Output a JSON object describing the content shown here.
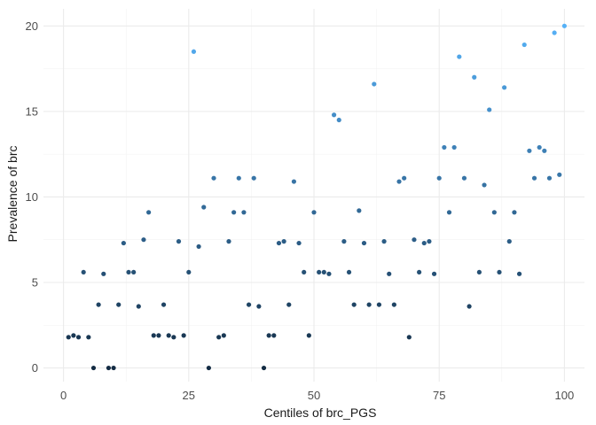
{
  "chart_data": {
    "type": "scatter",
    "title": "",
    "xlabel": "Centiles of brc_PGS",
    "ylabel": "Prevalence of brc",
    "xlim": [
      -4,
      104
    ],
    "ylim": [
      -0.8,
      21
    ],
    "xticks": [
      0,
      25,
      50,
      75,
      100
    ],
    "yticks": [
      0,
      5,
      10,
      15,
      20
    ],
    "grid": true,
    "legend": "none",
    "colors": {
      "low": "#132b43",
      "high": "#56b1f7"
    },
    "points": [
      [
        1,
        1.8
      ],
      [
        2,
        1.9
      ],
      [
        3,
        1.8
      ],
      [
        4,
        5.6
      ],
      [
        5,
        1.8
      ],
      [
        6,
        0.0
      ],
      [
        7,
        3.7
      ],
      [
        8,
        5.5
      ],
      [
        9,
        0.0
      ],
      [
        10,
        0.0
      ],
      [
        11,
        3.7
      ],
      [
        12,
        7.3
      ],
      [
        13,
        5.6
      ],
      [
        14,
        5.6
      ],
      [
        15,
        3.6
      ],
      [
        16,
        7.5
      ],
      [
        17,
        9.1
      ],
      [
        18,
        1.9
      ],
      [
        19,
        1.9
      ],
      [
        20,
        3.7
      ],
      [
        21,
        1.9
      ],
      [
        22,
        1.8
      ],
      [
        23,
        7.4
      ],
      [
        24,
        1.9
      ],
      [
        25,
        5.6
      ],
      [
        26,
        18.5
      ],
      [
        27,
        7.1
      ],
      [
        28,
        9.4
      ],
      [
        29,
        0.0
      ],
      [
        30,
        11.1
      ],
      [
        31,
        1.8
      ],
      [
        32,
        1.9
      ],
      [
        33,
        7.4
      ],
      [
        34,
        9.1
      ],
      [
        35,
        11.1
      ],
      [
        36,
        9.1
      ],
      [
        37,
        3.7
      ],
      [
        38,
        11.1
      ],
      [
        39,
        3.6
      ],
      [
        40,
        0.0
      ],
      [
        41,
        1.9
      ],
      [
        42,
        1.9
      ],
      [
        43,
        7.3
      ],
      [
        44,
        7.4
      ],
      [
        45,
        3.7
      ],
      [
        46,
        10.9
      ],
      [
        47,
        7.3
      ],
      [
        48,
        5.6
      ],
      [
        49,
        1.9
      ],
      [
        50,
        9.1
      ],
      [
        51,
        5.6
      ],
      [
        52,
        5.6
      ],
      [
        53,
        5.5
      ],
      [
        54,
        14.8
      ],
      [
        55,
        14.5
      ],
      [
        56,
        7.4
      ],
      [
        57,
        5.6
      ],
      [
        58,
        3.7
      ],
      [
        59,
        9.2
      ],
      [
        60,
        7.3
      ],
      [
        61,
        3.7
      ],
      [
        62,
        16.6
      ],
      [
        63,
        3.7
      ],
      [
        64,
        7.4
      ],
      [
        65,
        5.5
      ],
      [
        66,
        3.7
      ],
      [
        67,
        10.9
      ],
      [
        68,
        11.1
      ],
      [
        69,
        1.8
      ],
      [
        70,
        7.5
      ],
      [
        71,
        5.6
      ],
      [
        72,
        7.3
      ],
      [
        73,
        7.4
      ],
      [
        74,
        5.5
      ],
      [
        75,
        11.1
      ],
      [
        76,
        12.9
      ],
      [
        77,
        9.1
      ],
      [
        78,
        12.9
      ],
      [
        79,
        18.2
      ],
      [
        80,
        11.1
      ],
      [
        81,
        3.6
      ],
      [
        82,
        17.0
      ],
      [
        83,
        5.6
      ],
      [
        84,
        10.7
      ],
      [
        85,
        15.1
      ],
      [
        86,
        9.1
      ],
      [
        87,
        5.6
      ],
      [
        88,
        16.4
      ],
      [
        89,
        7.4
      ],
      [
        90,
        9.1
      ],
      [
        91,
        5.5
      ],
      [
        92,
        18.9
      ],
      [
        93,
        12.7
      ],
      [
        94,
        11.1
      ],
      [
        95,
        12.9
      ],
      [
        96,
        12.7
      ],
      [
        97,
        11.1
      ],
      [
        98,
        19.6
      ],
      [
        99,
        11.3
      ],
      [
        100,
        20.0
      ]
    ]
  }
}
